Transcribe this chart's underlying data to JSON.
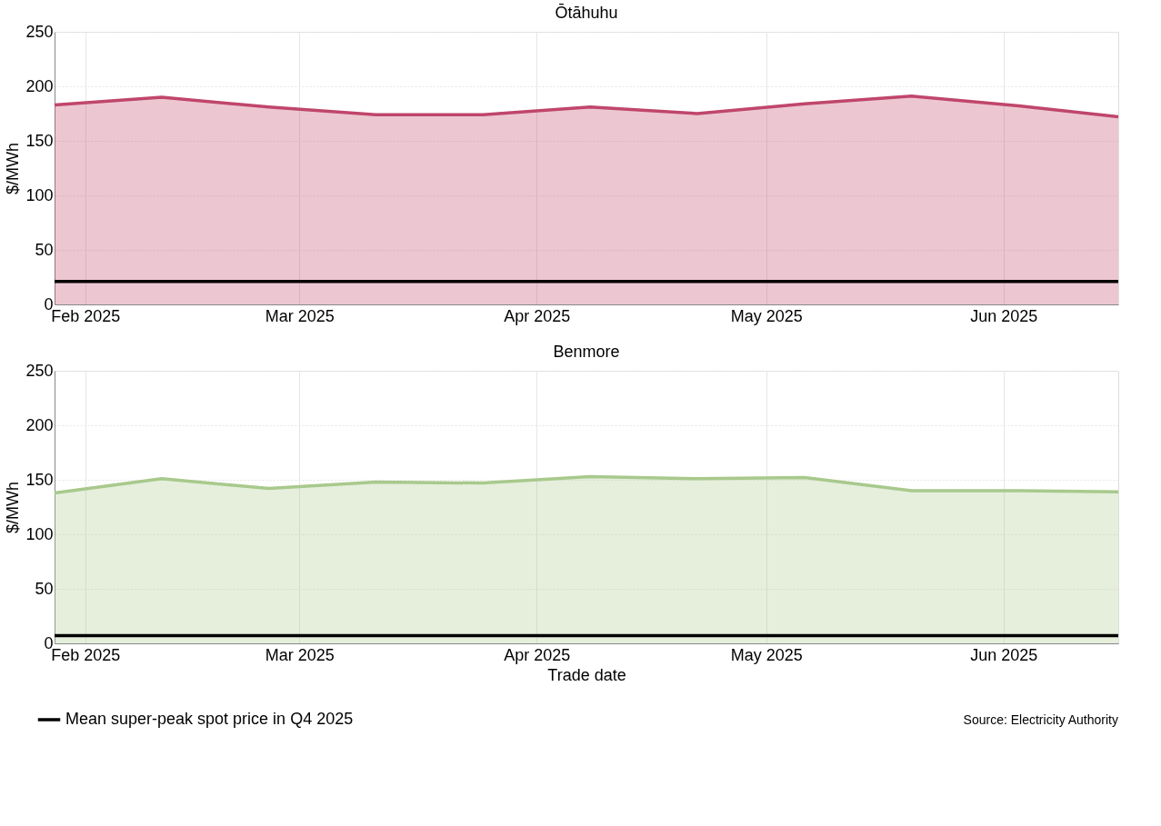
{
  "chart_data": [
    {
      "type": "area",
      "title": "Ōtāhuhu",
      "ylabel": "$/MWh",
      "x": [
        "2025-01-28",
        "2025-02-11",
        "2025-02-25",
        "2025-03-11",
        "2025-03-25",
        "2025-04-08",
        "2025-04-22",
        "2025-05-06",
        "2025-05-20",
        "2025-06-03",
        "2025-06-16"
      ],
      "series": [
        {
          "color": "#c0466b",
          "values": [
            183,
            190,
            181,
            174,
            174,
            181,
            175,
            184,
            191,
            182,
            172
          ]
        }
      ],
      "xlim": [
        "2025-01-28",
        "2025-06-16"
      ],
      "xticks": [
        {
          "value": "2025-02-01",
          "label": "Feb 2025"
        },
        {
          "value": "2025-03-01",
          "label": "Mar 2025"
        },
        {
          "value": "2025-04-01",
          "label": "Apr 2025"
        },
        {
          "value": "2025-05-01",
          "label": "May 2025"
        },
        {
          "value": "2025-06-01",
          "label": "Jun 2025"
        }
      ],
      "ylim": [
        0,
        250
      ],
      "yticks": [
        0,
        50,
        100,
        150,
        200,
        250
      ],
      "grid": true,
      "ref_lines": [
        {
          "axis": "y",
          "value": 21,
          "color": "#000000"
        }
      ]
    },
    {
      "type": "area",
      "title": "Benmore",
      "ylabel": "$/MWh",
      "xlabel": "Trade date",
      "x": [
        "2025-01-28",
        "2025-02-11",
        "2025-02-25",
        "2025-03-11",
        "2025-03-25",
        "2025-04-08",
        "2025-04-22",
        "2025-05-06",
        "2025-05-20",
        "2025-06-03",
        "2025-06-16"
      ],
      "series": [
        {
          "color": "#a8c98c",
          "values": [
            138,
            151,
            142,
            148,
            147,
            153,
            151,
            152,
            140,
            140,
            139
          ]
        }
      ],
      "xlim": [
        "2025-01-28",
        "2025-06-16"
      ],
      "xticks": [
        {
          "value": "2025-02-01",
          "label": "Feb 2025"
        },
        {
          "value": "2025-03-01",
          "label": "Mar 2025"
        },
        {
          "value": "2025-04-01",
          "label": "Apr 2025"
        },
        {
          "value": "2025-05-01",
          "label": "May 2025"
        },
        {
          "value": "2025-06-01",
          "label": "Jun 2025"
        }
      ],
      "ylim": [
        0,
        250
      ],
      "yticks": [
        0,
        50,
        100,
        150,
        200,
        250
      ],
      "grid": true,
      "ref_lines": [
        {
          "axis": "y",
          "value": 7,
          "color": "#000000",
          "label": "Mean super-peak spot price in Q4 2025"
        }
      ],
      "legend": "bottom left",
      "annotations": [
        "Source: Electricity Authority"
      ]
    }
  ]
}
